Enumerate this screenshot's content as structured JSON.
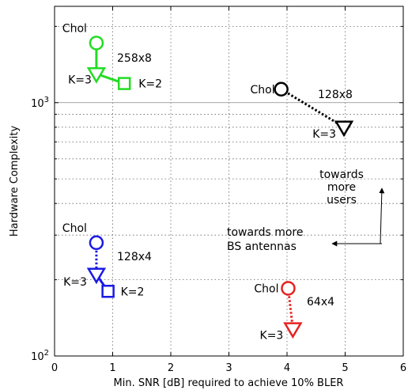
{
  "chart_data": {
    "type": "scatter",
    "xlabel": "Min. SNR [dB] required to achieve 10% BLER",
    "ylabel": "Hardware Complexity",
    "xlim": [
      0,
      6
    ],
    "ylim": [
      100,
      2400
    ],
    "yscale": "log",
    "grid": true,
    "x_ticks": [
      "0",
      "1",
      "2",
      "3",
      "4",
      "5",
      "6"
    ],
    "y_ticks": [
      {
        "value": 100,
        "base": "10",
        "exp": "2"
      },
      {
        "value": 1000,
        "base": "10",
        "exp": "3"
      }
    ],
    "series": [
      {
        "label": "258x8",
        "color": "#22dd22",
        "points": [
          {
            "x": 0.72,
            "y": 1720,
            "marker": "circle",
            "label": "Chol"
          },
          {
            "x": 0.72,
            "y": 1300,
            "marker": "triangle-down",
            "label": "K=3"
          },
          {
            "x": 1.2,
            "y": 1190,
            "marker": "square",
            "label": "K=2"
          }
        ]
      },
      {
        "label": "128x8",
        "color": "#000000",
        "points": [
          {
            "x": 3.9,
            "y": 1130,
            "marker": "circle",
            "label": "Chol"
          },
          {
            "x": 4.98,
            "y": 800,
            "marker": "triangle-down",
            "label": "K=3"
          }
        ]
      },
      {
        "label": "128x4",
        "color": "#1a1ae6",
        "points": [
          {
            "x": 0.72,
            "y": 280,
            "marker": "circle",
            "label": "Chol"
          },
          {
            "x": 0.72,
            "y": 210,
            "marker": "triangle-down",
            "label": "K=3"
          },
          {
            "x": 0.92,
            "y": 180,
            "marker": "square",
            "label": "K=2"
          }
        ]
      },
      {
        "label": "64x4",
        "color": "#e62222",
        "points": [
          {
            "x": 4.02,
            "y": 185,
            "marker": "circle",
            "label": "Chol"
          },
          {
            "x": 4.1,
            "y": 128,
            "marker": "triangle-down",
            "label": "K=3"
          }
        ]
      }
    ],
    "annotations": [
      {
        "lines": [
          "towards",
          "more",
          "users"
        ]
      },
      {
        "lines": [
          "towards more",
          "BS antennas"
        ]
      }
    ]
  }
}
